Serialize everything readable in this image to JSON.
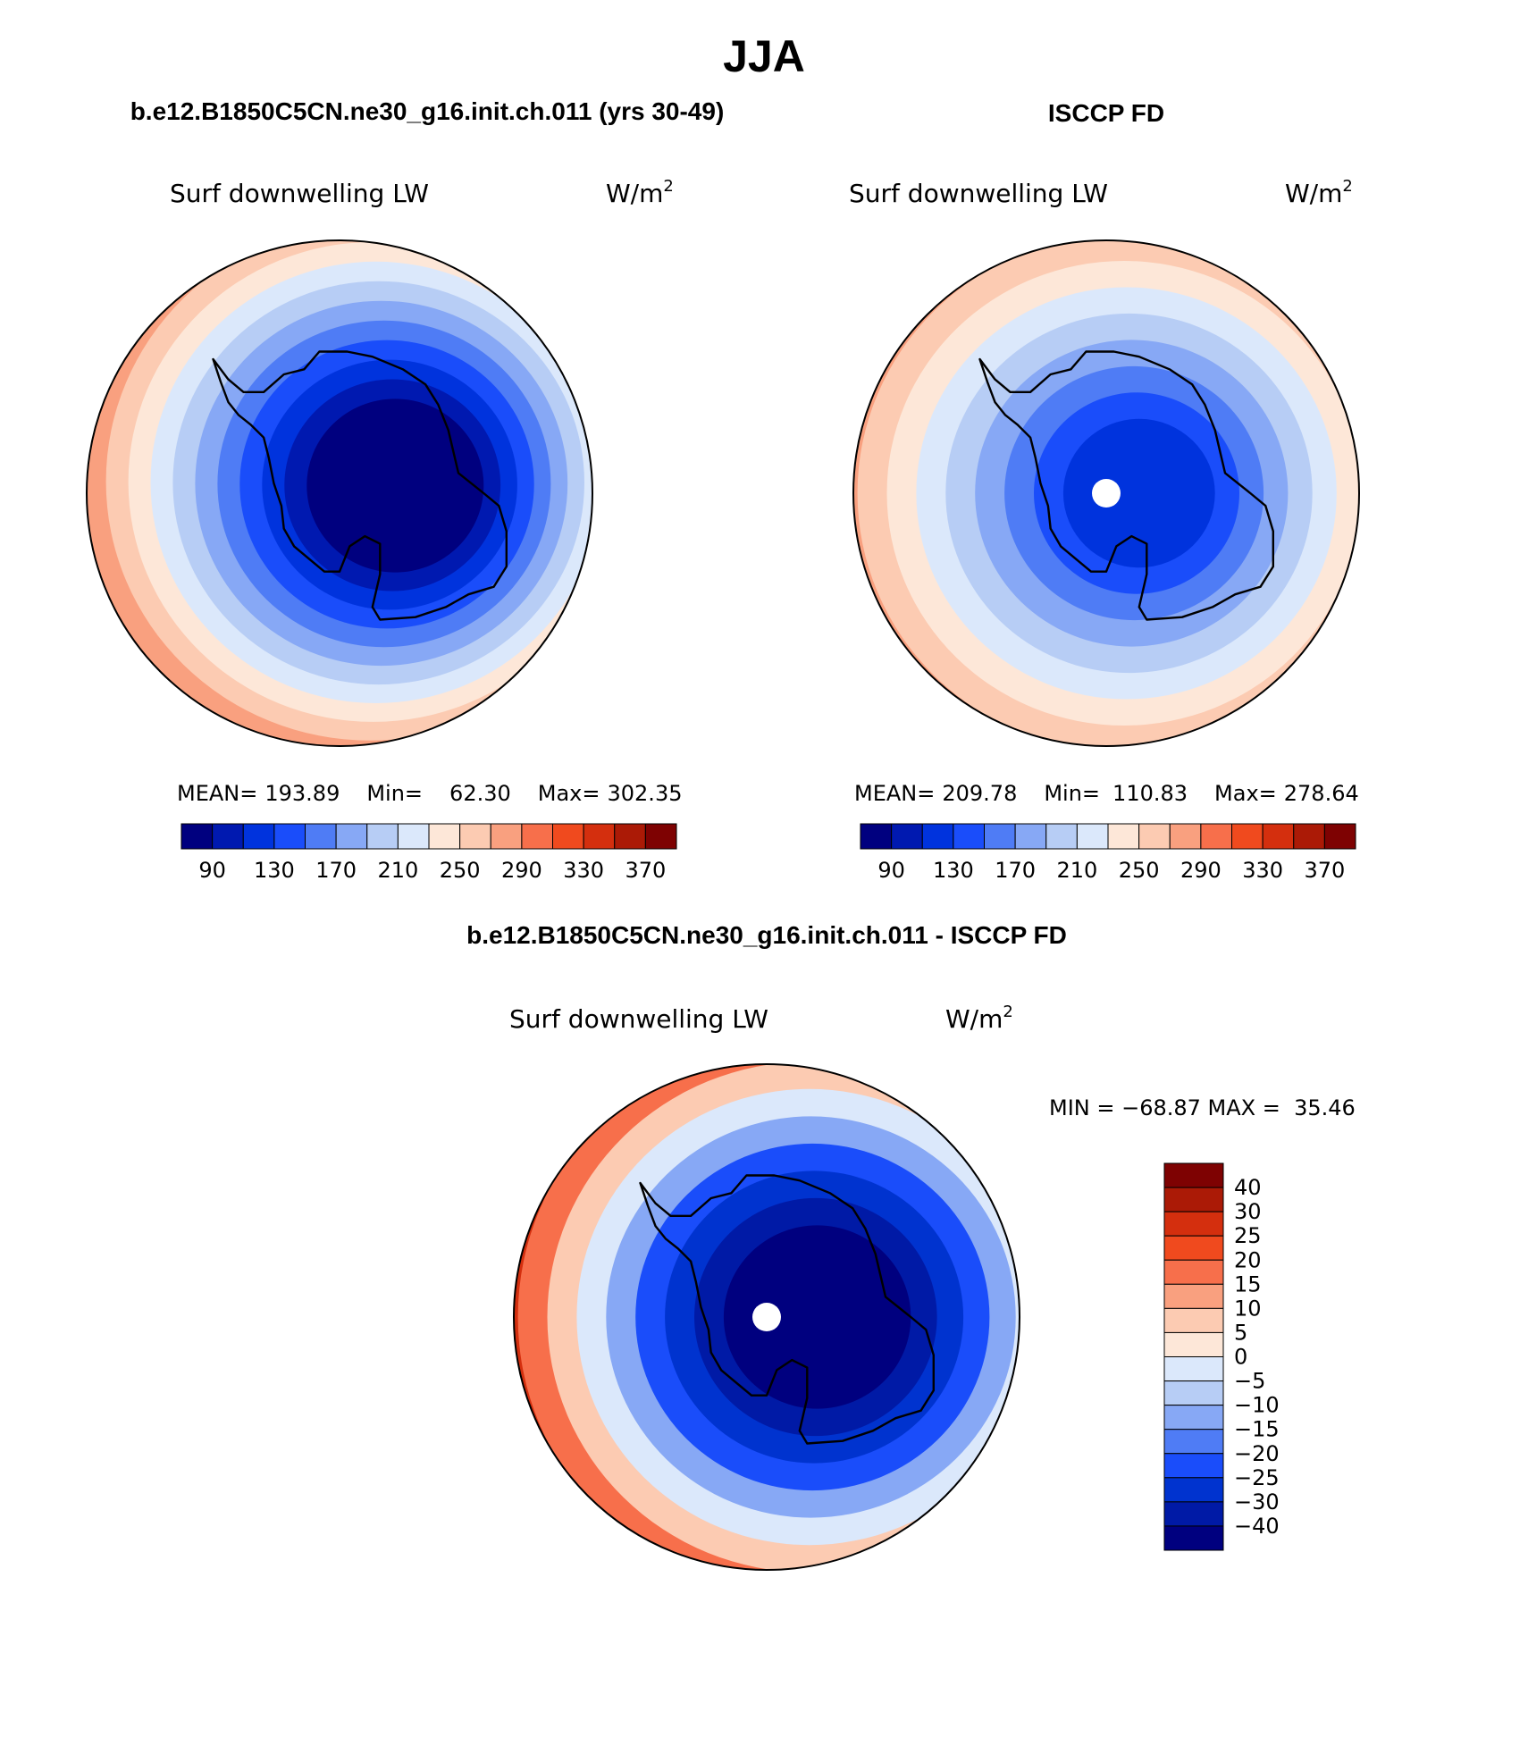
{
  "page_title": "JJA",
  "colors": {
    "seq": [
      "#00007f",
      "#0019b0",
      "#0033dd",
      "#1a4dfa",
      "#4f7cf5",
      "#87a8f5",
      "#b7cdf5",
      "#dbe8fb",
      "#fde7d8",
      "#fccbb2",
      "#f9a07f",
      "#f76f4b",
      "#f04a1e",
      "#d42f0e",
      "#ab1a06",
      "#7e0202"
    ],
    "diff": [
      "#00007f",
      "#001aa6",
      "#0033cf",
      "#1a4dfa",
      "#4f7cf5",
      "#87a8f5",
      "#b7cdf5",
      "#dbe8fb",
      "#fde7d8",
      "#fccbb2",
      "#f9a07f",
      "#f76f4b",
      "#f04a1e",
      "#d42f0e",
      "#ab1a06",
      "#7e0202"
    ],
    "coast": "#000000"
  },
  "chart_data": [
    {
      "type": "heatmap",
      "panel": "model",
      "title": "b.e12.B1850C5CN.ne30_g16.init.ch.011 (yrs 30-49)",
      "left_label": "Surf downwelling LW",
      "units": "W/m",
      "units_sup": "2",
      "stats": {
        "mean_label": "MEAN=",
        "mean": "193.89",
        "min_label": "Min=",
        "min": "62.30",
        "max_label": "Max=",
        "max": "302.35"
      },
      "levels": [
        90,
        110,
        130,
        150,
        170,
        190,
        210,
        230,
        250,
        270,
        290,
        310,
        330,
        350,
        370
      ],
      "tick_labels": [
        "90",
        "130",
        "170",
        "210",
        "250",
        "290",
        "330",
        "370"
      ],
      "zone_levels": [
        80,
        100,
        120,
        140,
        160,
        180,
        200,
        220,
        240,
        260,
        280,
        300
      ],
      "pole_missing": false
    },
    {
      "type": "heatmap",
      "panel": "observations",
      "title": "ISCCP FD",
      "left_label": "Surf downwelling LW",
      "units": "W/m",
      "units_sup": "2",
      "stats": {
        "mean_label": "MEAN=",
        "mean": "209.78",
        "min_label": "Min=",
        "min": "110.83",
        "max_label": "Max=",
        "max": "278.64"
      },
      "levels": [
        90,
        110,
        130,
        150,
        170,
        190,
        210,
        230,
        250,
        270,
        290,
        310,
        330,
        350,
        370
      ],
      "tick_labels": [
        "90",
        "130",
        "170",
        "210",
        "250",
        "290",
        "330",
        "370"
      ],
      "zone_levels": [
        120,
        140,
        160,
        180,
        200,
        220,
        240,
        260,
        270
      ],
      "pole_missing": true
    },
    {
      "type": "heatmap",
      "panel": "difference",
      "title": "b.e12.B1850C5CN.ne30_g16.init.ch.011 - ISCCP FD",
      "left_label": "Surf downwelling LW",
      "units": "W/m",
      "units_sup": "2",
      "stats_text": "MIN = −68.87 MAX =  35.46",
      "levels": [
        -40,
        -30,
        -25,
        -20,
        -15,
        -10,
        -5,
        0,
        5,
        10,
        15,
        20,
        25,
        30,
        40
      ],
      "tick_labels": [
        "40",
        "30",
        "25",
        "20",
        "15",
        "10",
        "5",
        "0",
        "−5",
        "−10",
        "−15",
        "−20",
        "−25",
        "−30",
        "−40"
      ],
      "zone_levels": [
        -45,
        -35,
        -28,
        -22,
        -12,
        -2,
        8,
        18,
        28
      ],
      "pole_missing": true
    }
  ]
}
